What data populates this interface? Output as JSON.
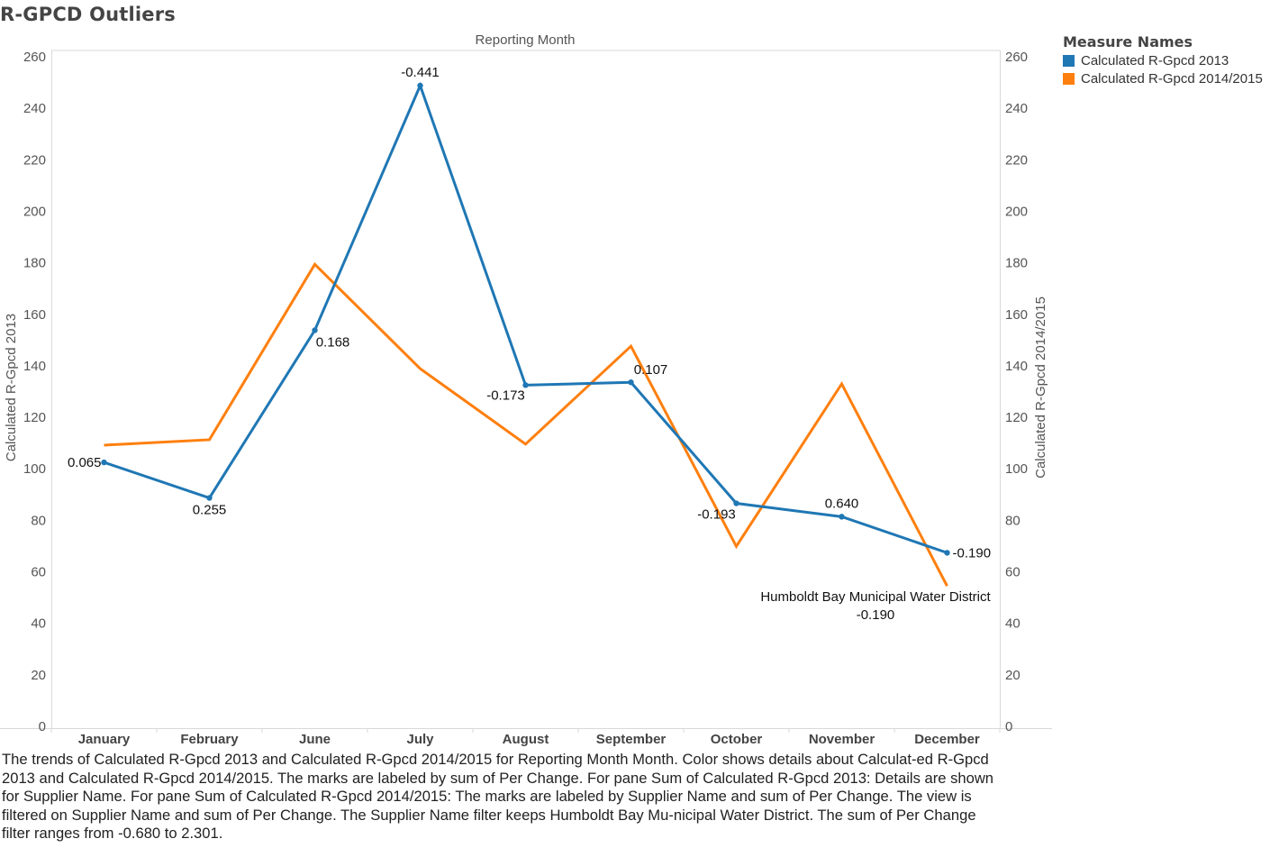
{
  "title": "R-GPCD Outliers",
  "chart_data": {
    "type": "line",
    "title": "R-GPCD Outliers",
    "xlabel": "Reporting Month",
    "ylabel_left": "Calculated R-Gpcd 2013",
    "ylabel_right": "Calculated R-Gpcd 2014/2015",
    "categories": [
      "January",
      "February",
      "June",
      "July",
      "August",
      "September",
      "October",
      "November",
      "December"
    ],
    "ylim": [
      0,
      260
    ],
    "yticks": [
      0,
      20,
      40,
      60,
      80,
      100,
      120,
      140,
      160,
      180,
      200,
      220,
      240,
      260
    ],
    "series": [
      {
        "name": "Calculated R-Gpcd 2013",
        "color": "#1f77b4",
        "values": [
          102.5,
          88.7,
          153.8,
          248.8,
          132.5,
          133.6,
          86.6,
          81.4,
          67.4
        ],
        "labels": [
          "0.065",
          "0.255",
          "0.168",
          "-0.441",
          "-0.173",
          "0.107",
          "-0.193",
          "0.640",
          "-0.190"
        ]
      },
      {
        "name": "Calculated R-Gpcd 2014/2015",
        "color": "#ff7f0e",
        "values": [
          109.2,
          111.3,
          179.4,
          138.9,
          109.6,
          147.6,
          69.9,
          133.0,
          54.5
        ]
      }
    ],
    "annotation": {
      "supplier": "Humboldt Bay Municipal Water District",
      "value": "-0.190"
    },
    "legend": {
      "title": "Measure Names",
      "position": "top-right"
    }
  },
  "caption": "The trends of Calculated R-Gpcd 2013 and Calculated R-Gpcd 2014/2015 for Reporting Month Month.  Color shows details about Calculat-ed R-Gpcd 2013 and Calculated R-Gpcd 2014/2015.  The marks are labeled by sum of Per Change.  For pane Sum of Calculated R-Gpcd 2013:  Details are shown for Supplier Name.  For pane Sum of Calculated R-Gpcd 2014/2015:  The marks are labeled by Supplier Name and sum of Per Change. The view is filtered on Supplier Name and sum of Per Change. The Supplier Name filter keeps Humboldt Bay Mu-nicipal Water District. The sum of Per Change filter ranges from -0.680 to 2.301."
}
